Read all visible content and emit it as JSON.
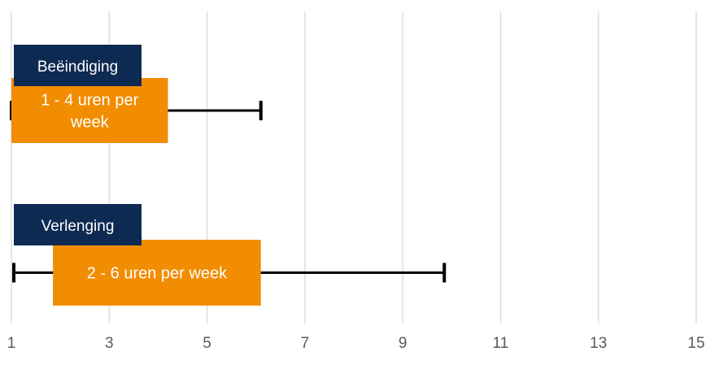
{
  "chart_data": {
    "type": "bar",
    "orientation": "horizontal",
    "xlim": [
      1,
      15
    ],
    "x_ticks": [
      1,
      3,
      5,
      7,
      9,
      11,
      13,
      15
    ],
    "grid": "vertical",
    "colors": {
      "bar": "#F28C00",
      "category_box": "#0D2A52",
      "grid": "#D9D9D9",
      "error_bar": "#000000",
      "tick_label": "#595959"
    },
    "categories": [
      {
        "name": "Beëindiging",
        "bar_label": [
          "1 - 4 uren per",
          "week"
        ],
        "start": 1,
        "end": 4.2,
        "error_low": 1,
        "error_high": 6.1
      },
      {
        "name": "Verlenging",
        "bar_label": [
          "2 - 6 uren per week"
        ],
        "start": 1.85,
        "end": 6.1,
        "error_low": 1.05,
        "error_high": 9.85
      }
    ]
  }
}
